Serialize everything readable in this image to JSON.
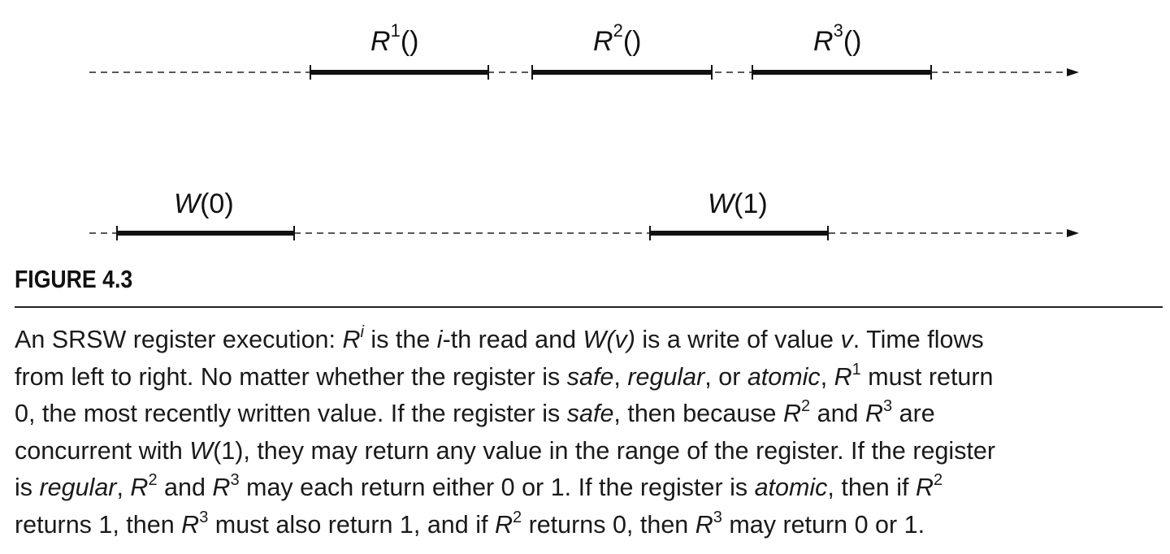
{
  "diagram": {
    "reads": [
      {
        "letter": "R",
        "sup": "1",
        "args": "()"
      },
      {
        "letter": "R",
        "sup": "2",
        "args": "()"
      },
      {
        "letter": "R",
        "sup": "3",
        "args": "()"
      }
    ],
    "writes": [
      {
        "letter": "W",
        "args": "(0)"
      },
      {
        "letter": "W",
        "args": "(1)"
      }
    ]
  },
  "figure": {
    "label": "FIGURE 4.3"
  },
  "caption": {
    "l1_a": "An SRSW register execution: ",
    "l1_R": "R",
    "l1_i": "i",
    "l1_b": " is the ",
    "l1_ivar": "i",
    "l1_c": "-th read and ",
    "l1_Wv": "W(v)",
    "l1_d": " is a write of value ",
    "l1_v": "v",
    "l1_e": ". Time flows",
    "l2_a": "from left to right. No matter whether the register is ",
    "l2_safe": "safe",
    "l2_b": ", ",
    "l2_regular": "regular",
    "l2_c": ", or ",
    "l2_atomic": "atomic",
    "l2_d": ", ",
    "l2_R": "R",
    "l2_sup": "1",
    "l2_e": " must return",
    "l3_a": "0, the most recently written value. If the register is ",
    "l3_safe": "safe",
    "l3_b": ", then because ",
    "l3_R2": "R",
    "l3_sup2": "2",
    "l3_c": " and ",
    "l3_R3": "R",
    "l3_sup3": "3",
    "l3_d": " are",
    "l4_a": "concurrent with ",
    "l4_W": "W",
    "l4_b": "(1), they may return any value in the range of the register. If the register",
    "l5_a": "is ",
    "l5_regular": "regular",
    "l5_b": ", ",
    "l5_R2": "R",
    "l5_sup2": "2",
    "l5_c": " and ",
    "l5_R3": "R",
    "l5_sup3": "3",
    "l5_d": " may each return either 0 or 1. If the register is ",
    "l5_atomic": "atomic",
    "l5_e": ", then if ",
    "l5_R": "R",
    "l5_sup": "2",
    "l6_a": "returns 1, then ",
    "l6_R3": "R",
    "l6_sup3": "3",
    "l6_b": " must also return 1, and if ",
    "l6_R2": "R",
    "l6_sup2": "2",
    "l6_c": " returns 0, then ",
    "l6_R3b": "R",
    "l6_sup3b": "3",
    "l6_d": " may return 0 or 1."
  }
}
